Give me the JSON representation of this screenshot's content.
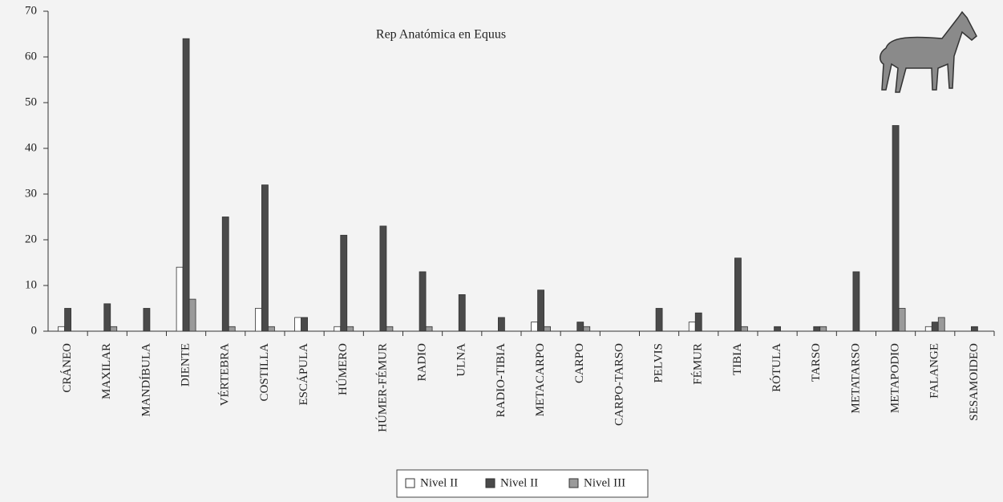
{
  "chart_data": {
    "type": "bar",
    "title": "Rep Anatómica en Equus",
    "categories": [
      "CRÁNEO",
      "MAXILAR",
      "MANDÍBULA",
      "DIENTE",
      "VÉRTEBRA",
      "COSTILLA",
      "ESCÁPULA",
      "HÚMERO",
      "HÚMER-FÉMUR",
      "RADIO",
      "ULNA",
      "RADIO-TIBIA",
      "METACARPO",
      "CARPO",
      "CARPO-TARSO",
      "PELVIS",
      "FÉMUR",
      "TIBIA",
      "RÓTULA",
      "TARSO",
      "METATARSO",
      "METAPODIO",
      "FALANGE",
      "SESAMOIDEO"
    ],
    "series": [
      {
        "name": "Nivel II",
        "color": "#ffffff",
        "values": [
          1,
          0,
          0,
          14,
          0,
          5,
          3,
          1,
          0,
          0,
          0,
          0,
          2,
          0,
          0,
          0,
          2,
          0,
          0,
          0,
          0,
          0,
          1,
          0
        ]
      },
      {
        "name": "Nivel II",
        "color": "#4a4a4a",
        "values": [
          5,
          6,
          5,
          64,
          25,
          32,
          3,
          21,
          23,
          13,
          8,
          3,
          9,
          2,
          0,
          5,
          4,
          16,
          1,
          1,
          13,
          45,
          2,
          1
        ]
      },
      {
        "name": "Nivel III",
        "color": "#9a9a9a",
        "values": [
          0,
          1,
          0,
          7,
          1,
          1,
          0,
          1,
          1,
          1,
          0,
          0,
          1,
          1,
          0,
          0,
          0,
          1,
          0,
          1,
          0,
          5,
          3,
          0
        ]
      }
    ],
    "ylim": [
      0,
      70
    ],
    "yticks": [
      0,
      10,
      20,
      30,
      40,
      50,
      60,
      70
    ],
    "grid": false,
    "legend": "bottom"
  }
}
